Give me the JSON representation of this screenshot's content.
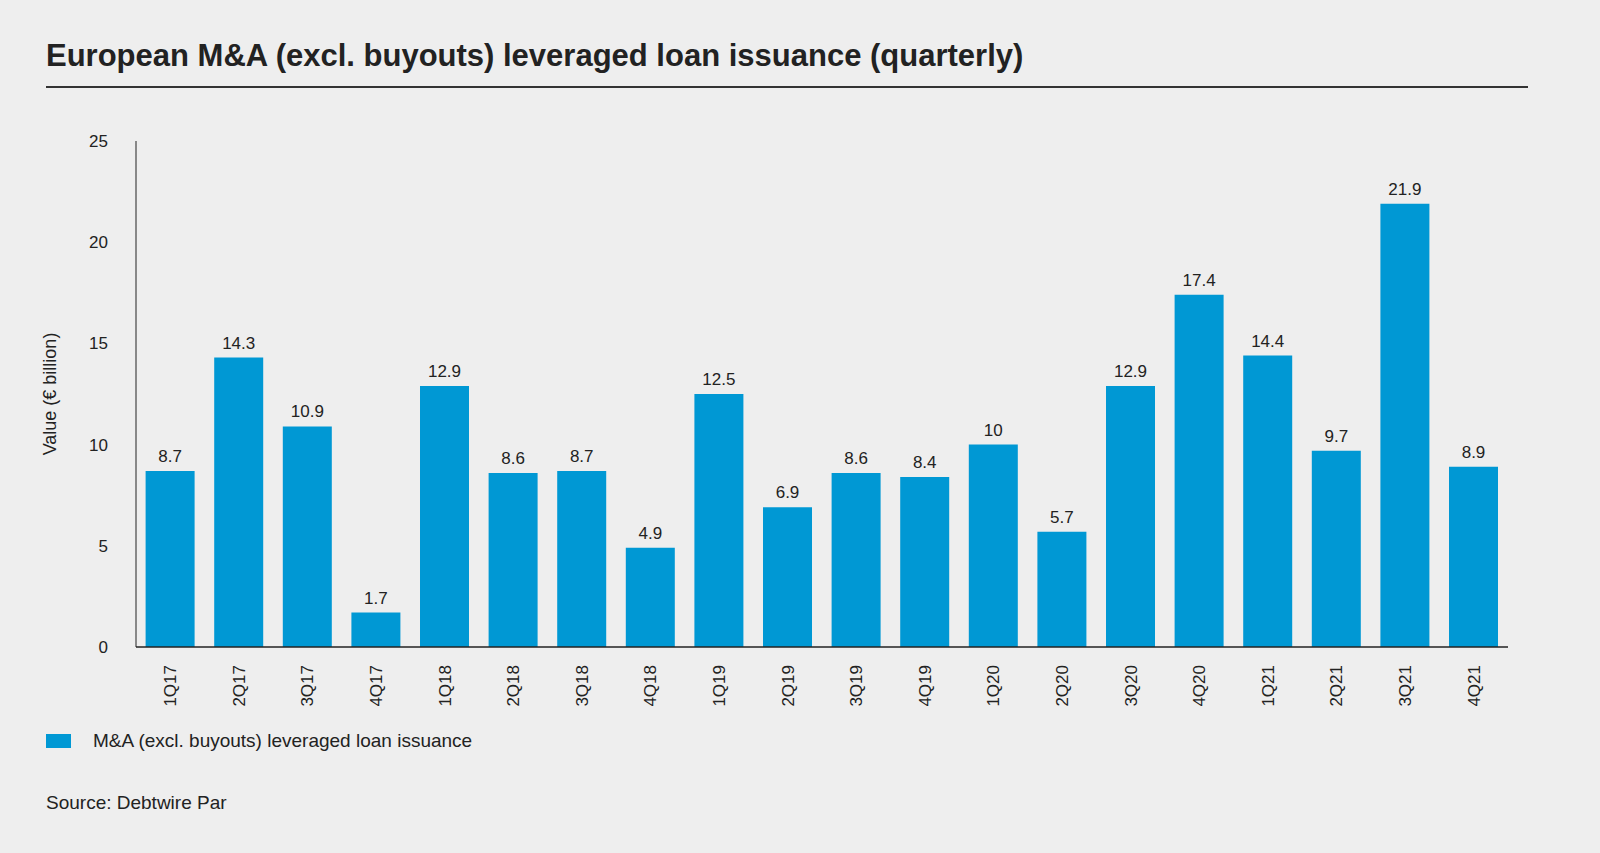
{
  "chart_data": {
    "type": "bar",
    "title": "European M&A (excl. buyouts) leveraged loan issuance (quarterly)",
    "y_label": "Value (€ billion)",
    "categories": [
      "1Q17",
      "2Q17",
      "3Q17",
      "4Q17",
      "1Q18",
      "2Q18",
      "3Q18",
      "4Q18",
      "1Q19",
      "2Q19",
      "3Q19",
      "4Q19",
      "1Q20",
      "2Q20",
      "3Q20",
      "4Q20",
      "1Q21",
      "2Q21",
      "3Q21",
      "4Q21"
    ],
    "series": [
      {
        "name": "M&A (excl. buyouts) leveraged loan issuance",
        "color": "#0098d4",
        "values": [
          8.7,
          14.3,
          10.9,
          1.7,
          12.9,
          8.6,
          8.7,
          4.9,
          12.5,
          6.9,
          8.6,
          8.4,
          10,
          5.7,
          12.9,
          17.4,
          14.4,
          9.7,
          21.9,
          8.9
        ]
      }
    ],
    "ylim": [
      0,
      25
    ],
    "yticks": [
      0,
      5,
      10,
      15,
      20,
      25
    ],
    "grid": false,
    "data_labels": true,
    "legend": "bottom-left",
    "source": "Source: Debtwire Par"
  }
}
